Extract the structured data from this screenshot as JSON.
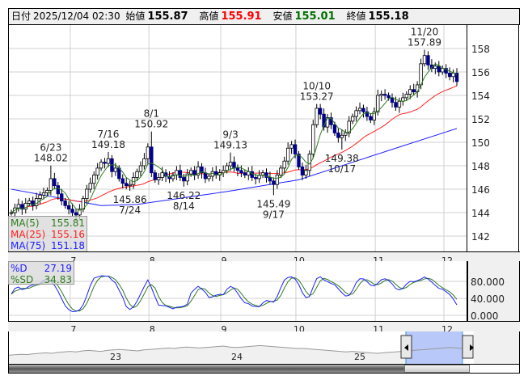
{
  "header": {
    "date_label": "日付",
    "date_value": "2025/12/04 02:30",
    "open_label": "始値",
    "open_value": "155.87",
    "high_label": "高値",
    "high_value": "155.91",
    "low_label": "安値",
    "low_value": "155.01",
    "close_label": "終値",
    "close_value": "155.18"
  },
  "colors": {
    "up": "#ffffff",
    "down": "#00008b",
    "ma5": "#2e7d1e",
    "ma25": "#ff2020",
    "ma75": "#2020ff",
    "d": "#2020ff",
    "sd": "#2e7d1e",
    "high": "#ff0000",
    "low": "#007000",
    "nav_fill": "#b8c8f8"
  },
  "legend_ma": [
    {
      "label": "MA(5)",
      "value": "155.81"
    },
    {
      "label": "MA(25)",
      "value": "155.16"
    },
    {
      "label": "MA(75)",
      "value": "151.18"
    }
  ],
  "legend_osc": [
    {
      "label": "%D",
      "value": "27.19"
    },
    {
      "label": "%SD",
      "value": "34.83"
    }
  ],
  "chart_data": {
    "type": "candlestick",
    "y_ticks": [
      158,
      156,
      154,
      152,
      150,
      148,
      146,
      144,
      142
    ],
    "ylim": [
      140.9,
      159.4
    ],
    "month_ticks": [
      {
        "label": "7",
        "index": 16.4
      },
      {
        "label": "8",
        "index": 38.3
      },
      {
        "label": "9",
        "index": 58.3
      },
      {
        "label": "10",
        "index": 79.2
      },
      {
        "label": "11",
        "index": 101.3
      },
      {
        "label": "12",
        "index": 120.4
      }
    ],
    "closes": [
      144.0,
      144.4,
      144.7,
      144.3,
      144.8,
      145.0,
      144.6,
      145.2,
      145.5,
      145.7,
      145.9,
      146.9,
      146.3,
      145.6,
      145.0,
      144.6,
      144.3,
      144.0,
      143.8,
      144.3,
      145.2,
      146.0,
      146.5,
      147.2,
      147.8,
      148.3,
      148.2,
      148.6,
      147.5,
      147.8,
      146.9,
      146.5,
      146.3,
      146.4,
      147.0,
      147.5,
      148.0,
      148.6,
      149.6,
      147.4,
      146.8,
      147.0,
      147.4,
      147.1,
      146.9,
      147.2,
      147.6,
      147.0,
      146.7,
      147.3,
      147.6,
      147.2,
      147.9,
      147.4,
      146.9,
      147.1,
      147.5,
      147.2,
      147.4,
      147.6,
      148.0,
      148.3,
      147.8,
      147.6,
      147.4,
      147.2,
      147.5,
      147.0,
      146.9,
      147.2,
      147.4,
      147.0,
      146.7,
      146.4,
      147.2,
      147.8,
      148.4,
      149.5,
      149.8,
      149.0,
      147.9,
      147.2,
      147.6,
      149.0,
      151.5,
      152.9,
      152.4,
      151.3,
      152.1,
      151.5,
      150.8,
      150.4,
      150.6,
      150.8,
      151.8,
      152.2,
      152.7,
      152.9,
      152.6,
      152.2,
      151.9,
      152.6,
      154.0,
      154.1,
      154.0,
      153.8,
      153.4,
      153.0,
      153.5,
      153.8,
      154.1,
      154.5,
      154.3,
      154.9,
      156.7,
      157.4,
      156.6,
      156.3,
      156.5,
      156.0,
      156.3,
      155.9,
      155.6,
      155.9,
      155.18
    ],
    "annotations": [
      {
        "type": "high",
        "index": 11,
        "date": "6/23",
        "value": "148.02",
        "price": 148.02
      },
      {
        "type": "high",
        "index": 27,
        "date": "7/16",
        "value": "149.18",
        "price": 149.18
      },
      {
        "type": "low",
        "index": 33,
        "date": "7/24",
        "value": "145.86",
        "price": 145.86
      },
      {
        "type": "high",
        "index": 39,
        "date": "8/1",
        "value": "150.92",
        "price": 150.92
      },
      {
        "type": "low",
        "index": 48,
        "date": "8/14",
        "value": "146.22",
        "price": 146.22
      },
      {
        "type": "high",
        "index": 61,
        "date": "9/3",
        "value": "149.13",
        "price": 149.13
      },
      {
        "type": "low",
        "index": 73,
        "date": "9/17",
        "value": "145.49",
        "price": 145.49
      },
      {
        "type": "high",
        "index": 85,
        "date": "10/10",
        "value": "153.27",
        "price": 153.27
      },
      {
        "type": "low",
        "index": 92,
        "date": "10/17",
        "value": "149.38",
        "price": 149.38
      },
      {
        "type": "high",
        "index": 115,
        "date": "11/20",
        "value": "157.89",
        "price": 157.89
      }
    ],
    "ma75": [
      [
        0,
        146.0
      ],
      [
        25,
        144.6
      ],
      [
        35,
        144.7
      ],
      [
        60,
        145.8
      ],
      [
        80,
        146.8
      ],
      [
        92,
        148.0
      ],
      [
        105,
        149.3
      ],
      [
        124,
        151.18
      ]
    ],
    "oscillator": {
      "y_ticks": [
        "80.000",
        "40.000",
        "0.000"
      ],
      "tick_values": [
        80,
        40,
        0
      ],
      "ylim": [
        -1,
        140
      ]
    },
    "navigator": {
      "year_labels": [
        "23",
        "24",
        "25"
      ],
      "series": [
        141,
        142,
        143,
        142.5,
        144,
        145,
        146,
        145,
        147,
        148,
        149,
        148,
        150,
        151,
        150,
        149,
        151,
        152,
        153,
        152,
        151,
        150,
        152,
        153,
        154,
        155,
        156,
        155,
        157,
        158,
        157,
        156,
        157,
        158,
        159,
        160,
        158,
        157,
        158,
        159,
        160,
        161,
        160,
        159,
        158,
        157,
        156,
        155,
        155,
        154,
        153,
        152,
        151,
        150,
        149,
        148,
        149,
        148,
        147,
        146,
        145,
        146,
        147,
        148,
        149,
        150,
        151,
        152,
        153,
        154,
        155,
        156,
        157,
        156,
        155
      ]
    }
  }
}
